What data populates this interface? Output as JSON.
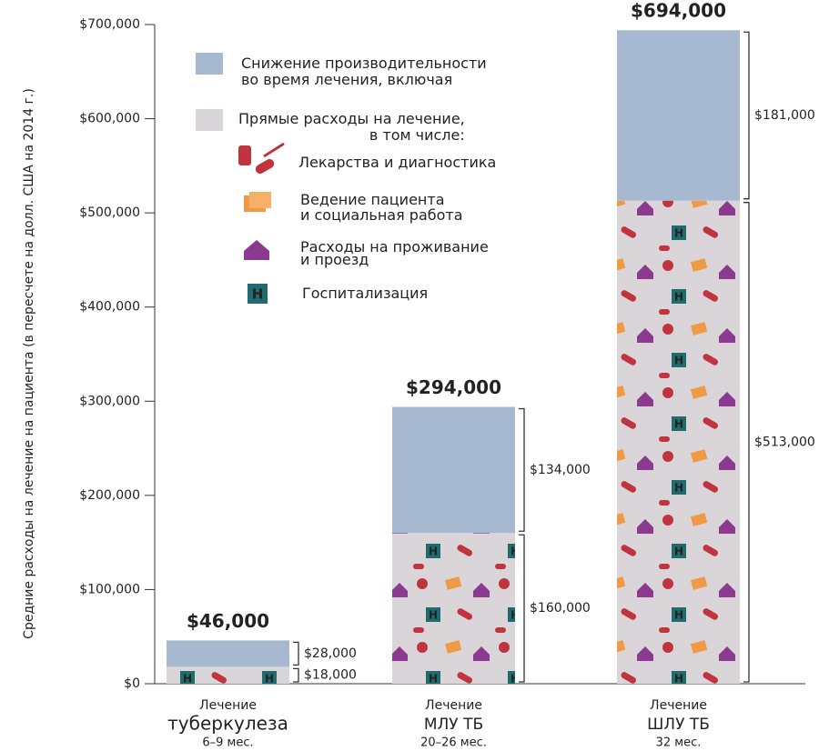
{
  "chart_data": {
    "type": "stacked_bar",
    "y_label": "Средние расходы на лечение на пациента (в пересчете на долл. США на 2014 г.)",
    "categories": [
      "туберкулеза",
      "МЛУ ТБ",
      "ШЛУ ТБ"
    ],
    "category_prefixes": [
      "Лечение",
      "Лечение",
      "Лечение"
    ],
    "durations": [
      "6–9 мес.",
      "20–26 мес.",
      "32 мес."
    ],
    "series": [
      {
        "name": "Прямые расходы на лечение,\nв том числе:",
        "color": "#d9d5d8",
        "values": [
          18000,
          160000,
          513000
        ],
        "value_labels": [
          "$18,000",
          "$160,000",
          "$513,000"
        ]
      },
      {
        "name": "Снижение производительности\nво время лечения, включая",
        "color": "#a6b9d0",
        "values": [
          28000,
          134000,
          181000
        ],
        "value_labels": [
          "$28,000",
          "$134,000",
          "$181,000"
        ]
      }
    ],
    "totals": [
      46000,
      294000,
      694000
    ],
    "total_labels": [
      "$46,000",
      "$294,000",
      "$694,000"
    ],
    "legend_items": [
      "Лекарства и диагностика",
      "Ведение пациента\nи социальная работа",
      "Расходы на проживание\nи проезд",
      "Госпитализация"
    ],
    "ylim": [
      0,
      700000
    ],
    "yticks": [
      {
        "value": 0,
        "label": "$0"
      },
      {
        "value": 100000,
        "label": "$100,000"
      },
      {
        "value": 200000,
        "label": "$200,000"
      },
      {
        "value": 300000,
        "label": "$300,000"
      },
      {
        "value": 400000,
        "label": "$400,000"
      },
      {
        "value": 500000,
        "label": "$500,000"
      },
      {
        "value": 600000,
        "label": "$600,000"
      },
      {
        "value": 700000,
        "label": "$700,000"
      }
    ]
  }
}
